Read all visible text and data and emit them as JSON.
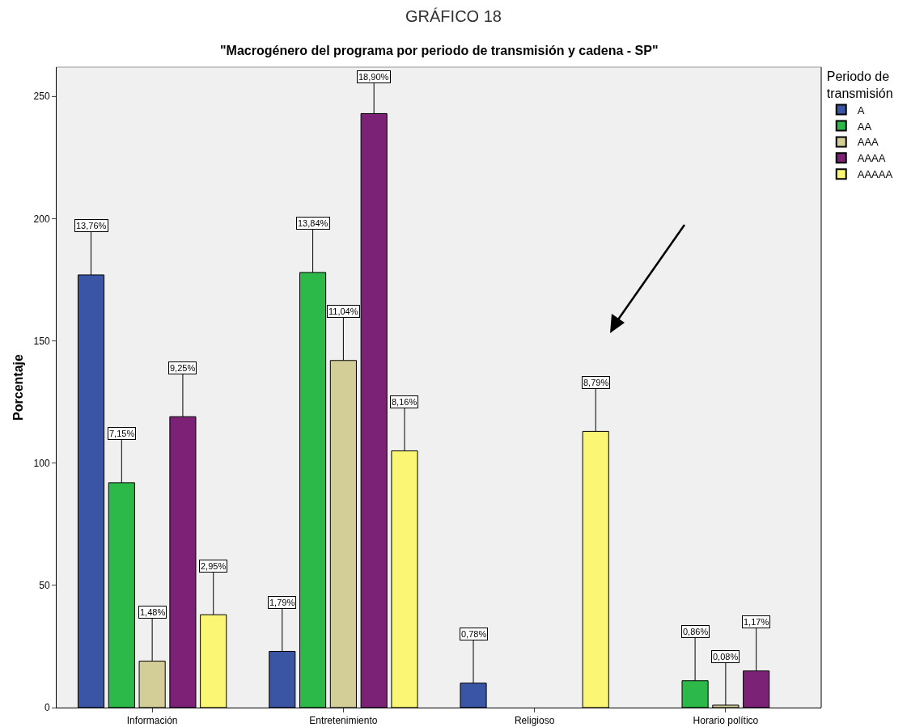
{
  "chart_data": {
    "type": "bar",
    "title": "GRÁFICO 18",
    "subtitle": "\"Macrogénero del programa por periodo de transmisión y cadena - SP\"",
    "ylabel": "Porcentaje",
    "legend_title": "Periodo de transmisión",
    "categories": [
      "Información",
      "Entretenimiento",
      "Religioso",
      "Horario político"
    ],
    "series": [
      {
        "name": "A",
        "color": "#3a55a4",
        "values": [
          177,
          23,
          10,
          null
        ]
      },
      {
        "name": "AA",
        "color": "#2db84a",
        "values": [
          92,
          178,
          null,
          11
        ]
      },
      {
        "name": "AAA",
        "color": "#d3ce97",
        "values": [
          19,
          142,
          null,
          1
        ]
      },
      {
        "name": "AAAA",
        "color": "#7b2277",
        "values": [
          119,
          243,
          null,
          15
        ]
      },
      {
        "name": "AAAAA",
        "color": "#fbf774",
        "values": [
          38,
          105,
          113,
          null
        ]
      }
    ],
    "annotations": [
      {
        "text": "13,76%",
        "y": 177
      },
      {
        "text": "7,15%",
        "y": 92
      },
      {
        "text": "1,48%",
        "y": 19
      },
      {
        "text": "9,25%",
        "y": 119
      },
      {
        "text": "2,95%",
        "y": 38
      },
      {
        "text": "1,79%",
        "y": 23
      },
      {
        "text": "13,84%",
        "y": 178
      },
      {
        "text": "11,04%",
        "y": 142
      },
      {
        "text": "18,90%",
        "y": 243
      },
      {
        "text": "8,16%",
        "y": 105
      },
      {
        "text": "0,78%",
        "y": 10
      },
      {
        "text": "8,79%",
        "y": 113
      },
      {
        "text": "0,86%",
        "y": 11
      },
      {
        "text": "0,08%",
        "y": 1
      },
      {
        "text": "1,17%",
        "y": 15
      }
    ],
    "ylim": [
      0,
      262
    ],
    "yticks": [
      0,
      50,
      100,
      150,
      200,
      250
    ],
    "grid": false,
    "legend": "top right"
  }
}
